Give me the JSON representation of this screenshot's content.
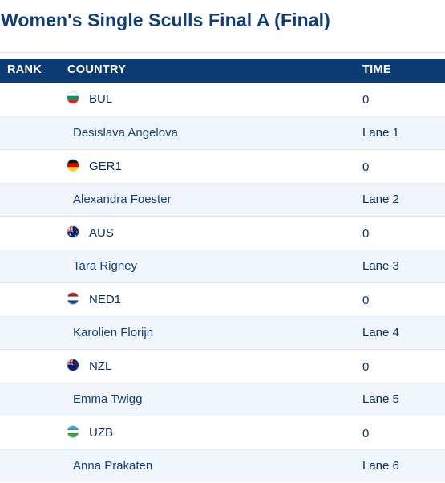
{
  "page": {
    "title": "Women's Single Sculls Final A (Final)"
  },
  "table": {
    "headers": {
      "rank": "RANK",
      "country": "COUNTRY",
      "time": "TIME"
    },
    "entries": [
      {
        "country": "BUL",
        "flag": "bulgaria-flag-icon",
        "time": "0",
        "athlete": "Desislava Angelova",
        "lane": "Lane 1"
      },
      {
        "country": "GER1",
        "flag": "germany-flag-icon",
        "time": "0",
        "athlete": "Alexandra Foester",
        "lane": "Lane 2"
      },
      {
        "country": "AUS",
        "flag": "australia-flag-icon",
        "time": "0",
        "athlete": "Tara Rigney",
        "lane": "Lane 3"
      },
      {
        "country": "NED1",
        "flag": "netherlands-flag-icon",
        "time": "0",
        "athlete": "Karolien Florijn",
        "lane": "Lane 4"
      },
      {
        "country": "NZL",
        "flag": "new-zealand-flag-icon",
        "time": "0",
        "athlete": "Emma Twigg",
        "lane": "Lane 5"
      },
      {
        "country": "UZB",
        "flag": "uzbekistan-flag-icon",
        "time": "0",
        "athlete": "Anna Prakaten",
        "lane": "Lane 6"
      }
    ]
  },
  "colors": {
    "header_bg": "#0c3a72",
    "title": "#0f3d74",
    "athlete_row_bg": "#f0f6fb",
    "text": "#0a2d5c"
  }
}
